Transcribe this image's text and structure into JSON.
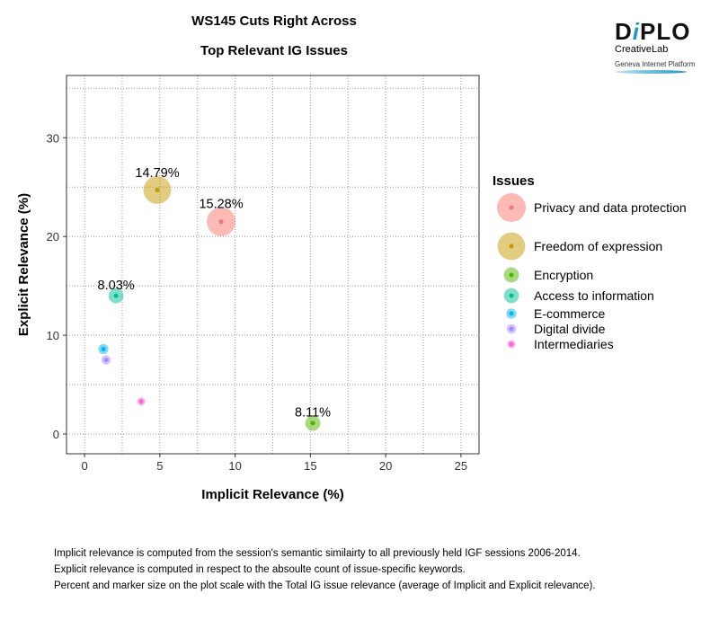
{
  "chart_data": {
    "type": "scatter",
    "title": "WS145 Cuts Right Across",
    "subtitle": "Top Relevant IG Issues",
    "xlabel": "Implicit Relevance (%)",
    "ylabel": "Explicit Relevance (%)",
    "xlim": [
      -1.2,
      26.2
    ],
    "ylim": [
      -2,
      36.3
    ],
    "xticks": [
      0,
      5,
      10,
      15,
      20,
      25
    ],
    "yticks": [
      0,
      10,
      20,
      30
    ],
    "grid": true,
    "marker_size": "average of implicit and explicit relevance",
    "legend": {
      "title": "Issues",
      "placement": "right"
    },
    "series": [
      {
        "name": "Privacy and data protection",
        "x": 9.07,
        "y": 21.5,
        "label": "15.28%",
        "color": "#F8766D"
      },
      {
        "name": "Freedom of expression",
        "x": 4.83,
        "y": 24.7,
        "label": "14.79%",
        "color": "#C49A00"
      },
      {
        "name": "Encryption",
        "x": 15.16,
        "y": 1.1,
        "label": "8.11%",
        "color": "#53B400"
      },
      {
        "name": "Access to information",
        "x": 2.09,
        "y": 14.0,
        "label": "8.03%",
        "color": "#00C094"
      },
      {
        "name": "E-commerce",
        "x": 1.25,
        "y": 8.6,
        "label": "",
        "color": "#00B6EB"
      },
      {
        "name": "Digital divide",
        "x": 1.43,
        "y": 7.5,
        "label": "",
        "color": "#A58AFF"
      },
      {
        "name": "Intermediaries",
        "x": 3.76,
        "y": 3.3,
        "label": "",
        "color": "#FB61D7"
      }
    ]
  },
  "logo": {
    "brand": "DiPLO",
    "sub": "CreativeLab",
    "tagline": "Geneva Internet Platform"
  },
  "notes": [
    "Implicit relevance is computed from the session's semantic similairty to all previously held IGF sessions 2006-2014.",
    "Explicit relevance is computed in respect to the absoulte count of issue-specific keywords.",
    "Percent and marker size on the plot scale with the Total IG issue relevance (average of Implicit and Explicit relevance)."
  ]
}
